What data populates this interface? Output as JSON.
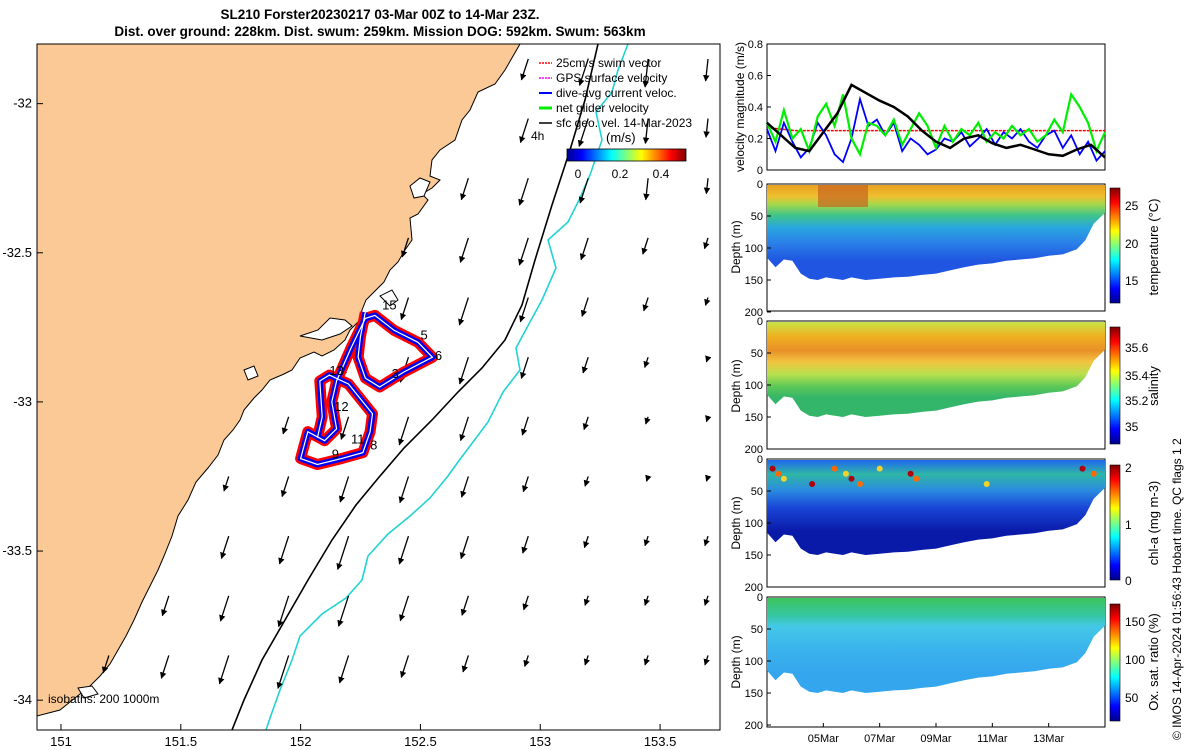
{
  "title": {
    "line1": "SL210 Forster20230217 03-Mar 00Z to 14-Mar 23Z.",
    "line2": "Dist. over ground: 228km. Dist. swum: 259km. Mission DOG: 592km. Swum: 563km"
  },
  "side_note": "© IMOS 14-Apr-2024 01:56:43 Hobart time. QC flags 1  2",
  "colors": {
    "land": "#fbc996",
    "swim_vector": "#ff0000",
    "gps_velocity": "#ff00ff",
    "dive_current": "#0000ff",
    "net_glider": "#00ee00",
    "isobath_200": "#000000",
    "isobath_1000": "#22d3d3",
    "track_red": "#ff0000",
    "track_blue": "#0000ee"
  },
  "chart_data": [
    {
      "type": "scatter",
      "name_key": "map",
      "xlim": [
        150.9,
        153.75
      ],
      "ylim": [
        -34.1,
        -31.8
      ],
      "xticks": [
        151,
        151.5,
        152,
        152.5,
        153,
        153.5
      ],
      "xtick_labels": [
        "151",
        "151.5",
        "152",
        "152.5",
        "153",
        "153.5"
      ],
      "yticks": [
        -32,
        -32.5,
        -33,
        -33.5,
        -34
      ],
      "ytick_labels": [
        "-32",
        "-32.5",
        "-33",
        "-33.5",
        "-34"
      ],
      "legend": [
        {
          "label": "25cm/s swim vector",
          "color": "#ff0000"
        },
        {
          "label": "GPS surface velocity",
          "color": "#ff00ff"
        },
        {
          "label": "dive-avg current veloc.",
          "color": "#0000ff"
        },
        {
          "label": "net glider velocity",
          "color": "#00ee00"
        },
        {
          "label": "sfc geo. vel. 14-Mar-2023",
          "color": "#000000"
        }
      ],
      "colorbar": {
        "label": "(m/s)",
        "ticks": [
          "0",
          "0.2",
          "0.4"
        ],
        "range": [
          -0.1,
          0.5
        ]
      },
      "corner_label": "4h",
      "isobath_label": "isobaths:  200  1000m",
      "waypoints": [
        {
          "label": "15",
          "lon": 152.34,
          "lat": -32.69
        },
        {
          "label": "5",
          "lon": 152.5,
          "lat": -32.79
        },
        {
          "label": "6",
          "lon": 152.56,
          "lat": -32.86
        },
        {
          "label": "3",
          "lon": 152.38,
          "lat": -32.92
        },
        {
          "label": "13",
          "lon": 152.12,
          "lat": -32.91
        },
        {
          "label": "12",
          "lon": 152.14,
          "lat": -33.03
        },
        {
          "label": "11",
          "lon": 152.21,
          "lat": -33.14
        },
        {
          "label": "8",
          "lon": 152.29,
          "lat": -33.16
        },
        {
          "label": "9",
          "lon": 152.13,
          "lat": -33.19
        }
      ],
      "track": [
        [
          152.27,
          -32.7
        ],
        [
          152.25,
          -32.78
        ],
        [
          152.24,
          -32.85
        ],
        [
          152.27,
          -32.92
        ],
        [
          152.33,
          -32.95
        ],
        [
          152.43,
          -32.9
        ],
        [
          152.55,
          -32.85
        ],
        [
          152.49,
          -32.8
        ],
        [
          152.39,
          -32.76
        ],
        [
          152.31,
          -32.71
        ],
        [
          152.27,
          -32.72
        ],
        [
          152.21,
          -32.82
        ],
        [
          152.15,
          -32.93
        ],
        [
          152.13,
          -33.0
        ],
        [
          152.15,
          -33.09
        ],
        [
          152.1,
          -33.13
        ],
        [
          152.03,
          -33.1
        ],
        [
          152.0,
          -33.19
        ],
        [
          152.07,
          -33.21
        ],
        [
          152.17,
          -33.19
        ],
        [
          152.26,
          -33.17
        ],
        [
          152.29,
          -33.1
        ],
        [
          152.3,
          -33.04
        ],
        [
          152.2,
          -32.94
        ],
        [
          152.12,
          -32.91
        ],
        [
          152.08,
          -32.93
        ],
        [
          152.09,
          -33.05
        ],
        [
          152.07,
          -33.12
        ]
      ]
    },
    {
      "type": "line",
      "name_key": "velocity",
      "ylabel": "velocity magnitude (m/s)",
      "ylim": [
        0,
        0.8
      ],
      "yticks": [
        0,
        0.2,
        0.4,
        0.6,
        0.8
      ],
      "xlim": [
        3,
        15
      ],
      "series": [
        {
          "key": "swim",
          "color": "#ff0000",
          "x": [
            3,
            3.5,
            4,
            5,
            6,
            7,
            8,
            9,
            10,
            11,
            12,
            13,
            14,
            15
          ],
          "y": [
            0.27,
            0.26,
            0.25,
            0.25,
            0.25,
            0.25,
            0.25,
            0.25,
            0.25,
            0.25,
            0.25,
            0.25,
            0.25,
            0.25
          ]
        },
        {
          "key": "current",
          "color": "#0000ff",
          "x": [
            3,
            3.3,
            3.6,
            3.9,
            4.2,
            4.5,
            4.8,
            5.1,
            5.4,
            5.7,
            6.0,
            6.3,
            6.6,
            6.9,
            7.2,
            7.5,
            7.8,
            8.1,
            8.4,
            8.7,
            9.0,
            9.3,
            9.6,
            9.9,
            10.2,
            10.5,
            10.8,
            11.1,
            11.4,
            11.7,
            12.0,
            12.3,
            12.6,
            12.9,
            13.2,
            13.5,
            13.8,
            14.1,
            14.4,
            14.7,
            15.0
          ],
          "y": [
            0.26,
            0.12,
            0.3,
            0.18,
            0.08,
            0.14,
            0.3,
            0.22,
            0.1,
            0.05,
            0.2,
            0.45,
            0.28,
            0.32,
            0.22,
            0.3,
            0.12,
            0.2,
            0.16,
            0.1,
            0.13,
            0.2,
            0.18,
            0.24,
            0.15,
            0.2,
            0.26,
            0.16,
            0.24,
            0.2,
            0.26,
            0.18,
            0.14,
            0.22,
            0.25,
            0.14,
            0.22,
            0.1,
            0.18,
            0.06,
            0.12
          ]
        },
        {
          "key": "net",
          "color": "#00ee00",
          "x": [
            3,
            3.3,
            3.6,
            3.9,
            4.2,
            4.5,
            4.8,
            5.1,
            5.4,
            5.7,
            6.0,
            6.3,
            6.6,
            6.9,
            7.2,
            7.5,
            7.8,
            8.1,
            8.4,
            8.7,
            9.0,
            9.3,
            9.6,
            9.9,
            10.2,
            10.5,
            10.8,
            11.1,
            11.4,
            11.7,
            12.0,
            12.3,
            12.6,
            12.9,
            13.2,
            13.5,
            13.8,
            14.1,
            14.4,
            14.7,
            15.0
          ],
          "y": [
            0.3,
            0.18,
            0.38,
            0.2,
            0.26,
            0.12,
            0.34,
            0.42,
            0.28,
            0.48,
            0.2,
            0.1,
            0.3,
            0.28,
            0.22,
            0.32,
            0.16,
            0.26,
            0.36,
            0.28,
            0.14,
            0.28,
            0.18,
            0.26,
            0.22,
            0.3,
            0.18,
            0.24,
            0.2,
            0.28,
            0.22,
            0.26,
            0.18,
            0.22,
            0.32,
            0.24,
            0.48,
            0.4,
            0.3,
            0.12,
            0.24
          ]
        },
        {
          "key": "geo",
          "color": "#000000",
          "x": [
            3,
            3.5,
            4,
            4.5,
            5,
            5.5,
            6,
            6.5,
            7,
            7.5,
            8,
            8.5,
            9,
            9.5,
            10,
            10.5,
            11,
            11.5,
            12,
            12.5,
            13,
            13.5,
            14,
            14.5,
            15
          ],
          "y": [
            0.3,
            0.22,
            0.14,
            0.12,
            0.24,
            0.36,
            0.54,
            0.49,
            0.44,
            0.4,
            0.34,
            0.25,
            0.18,
            0.14,
            0.2,
            0.22,
            0.17,
            0.14,
            0.16,
            0.13,
            0.1,
            0.09,
            0.13,
            0.16,
            0.08
          ]
        }
      ]
    },
    {
      "type": "heatmap",
      "name_key": "temperature",
      "ylabel": "Depth (m)",
      "yticks": [
        0,
        50,
        100,
        150,
        200
      ],
      "ylim": [
        200,
        0
      ],
      "cbar_label": "temperature (°C)",
      "cbar_ticks": [
        "25",
        "20",
        "15"
      ],
      "cbar_range": [
        12,
        28
      ]
    },
    {
      "type": "heatmap",
      "name_key": "salinity",
      "ylabel": "Depth (m)",
      "yticks": [
        0,
        50,
        100,
        150,
        200
      ],
      "ylim": [
        200,
        0
      ],
      "cbar_label": "salinity",
      "cbar_ticks": [
        "35.6",
        "35.4",
        "35.2",
        "35"
      ],
      "cbar_range": [
        34.9,
        35.75
      ]
    },
    {
      "type": "heatmap",
      "name_key": "chla",
      "ylabel": "Depth (m)",
      "yticks": [
        0,
        50,
        100,
        150,
        200
      ],
      "ylim": [
        200,
        0
      ],
      "cbar_label": "chl-a (mg m-3)",
      "cbar_ticks": [
        "2",
        "1",
        "0"
      ],
      "cbar_range": [
        0,
        2
      ]
    },
    {
      "type": "heatmap",
      "name_key": "oxygen",
      "ylabel": "Depth (m)",
      "yticks": [
        0,
        50,
        100,
        150,
        200
      ],
      "ylim": [
        200,
        0
      ],
      "cbar_label": "Ox. sat. ratio (%)",
      "cbar_ticks": [
        "150",
        "100",
        "50"
      ],
      "cbar_range": [
        20,
        175
      ],
      "xticks": [
        5,
        7,
        9,
        11,
        13
      ],
      "xtick_labels": [
        "05Mar",
        "07Mar",
        "09Mar",
        "11Mar",
        "13Mar"
      ]
    }
  ]
}
